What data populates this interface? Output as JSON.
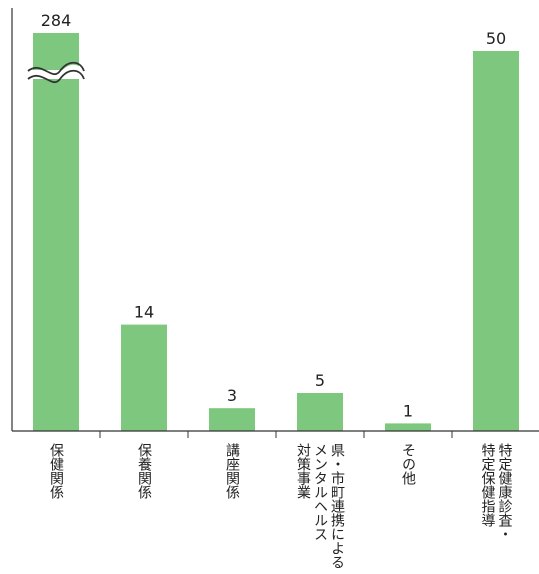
{
  "chart_data": {
    "type": "bar",
    "title": "",
    "xlabel": "",
    "ylabel": "",
    "categories": [
      [
        "保健関係"
      ],
      [
        "保養関係"
      ],
      [
        "講座関係"
      ],
      [
        "県・市町連携による",
        "メンタルヘルス",
        "対策事業"
      ],
      [
        "その他"
      ],
      [
        "特定健康診査・",
        "特定保健指導"
      ]
    ],
    "values": [
      284,
      14,
      3,
      5,
      1,
      50
    ],
    "data_labels": [
      "284",
      "14",
      "3",
      "5",
      "1",
      "50"
    ],
    "axis_break": true,
    "grid": false,
    "legend": "none",
    "colors": {
      "bar": "#7dc77f",
      "axis": "#333333",
      "text": "#222222"
    }
  }
}
